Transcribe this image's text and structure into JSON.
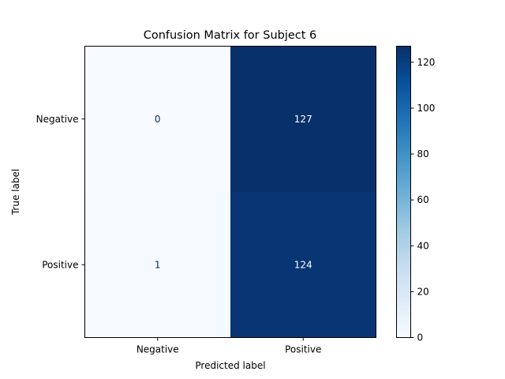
{
  "chart_data": {
    "type": "heatmap",
    "title": "Confusion Matrix for Subject 6",
    "xlabel": "Predicted label",
    "ylabel": "True label",
    "x_categories": [
      "Negative",
      "Positive"
    ],
    "y_categories": [
      "Negative",
      "Positive"
    ],
    "values": [
      [
        0,
        127
      ],
      [
        1,
        124
      ]
    ],
    "colormap": "Blues",
    "colorbar": {
      "min": 0,
      "max": 127,
      "ticks": [
        0,
        20,
        40,
        60,
        80,
        100,
        120
      ]
    },
    "colors": {
      "low": "#f7fbff",
      "high": "#08306b",
      "text_dark": "#08306b",
      "text_light": "#ffffff"
    }
  }
}
